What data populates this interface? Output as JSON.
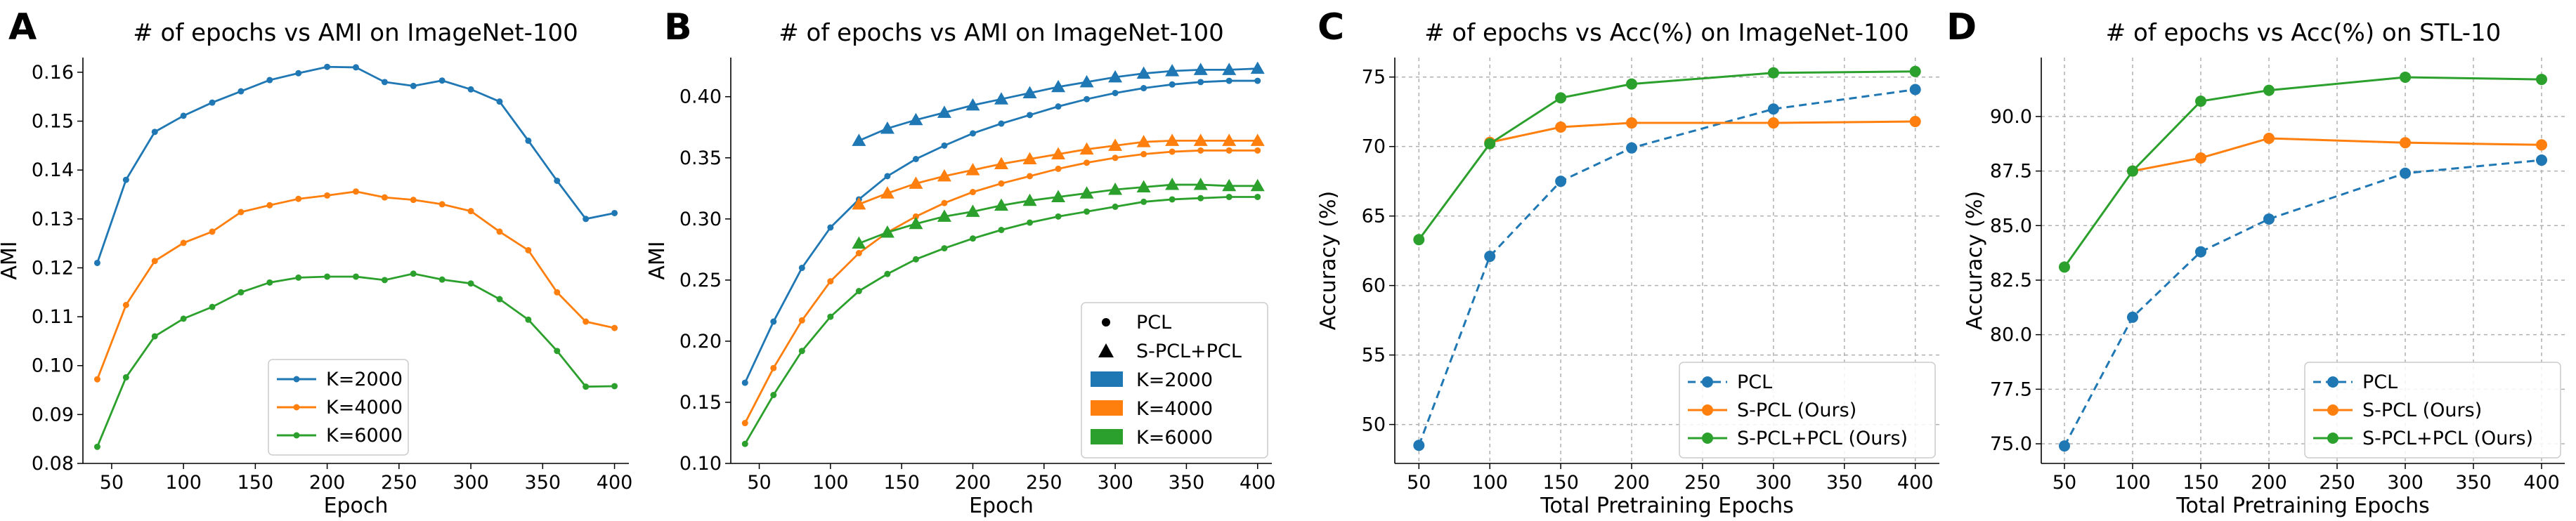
{
  "chart_data": [
    {
      "letter": "A",
      "type": "line",
      "title": "# of epochs vs AMI on ImageNet-100",
      "xlabel": "Epoch",
      "ylabel": "AMI",
      "xlim": [
        30,
        410
      ],
      "ylim": [
        0.08,
        0.163
      ],
      "xticks": [
        {
          "v": 50,
          "label": "50"
        },
        {
          "v": 100,
          "label": "100"
        },
        {
          "v": 150,
          "label": "150"
        },
        {
          "v": 200,
          "label": "200"
        },
        {
          "v": 250,
          "label": "250"
        },
        {
          "v": 300,
          "label": "300"
        },
        {
          "v": 350,
          "label": "350"
        },
        {
          "v": 400,
          "label": "400"
        }
      ],
      "yticks": [
        {
          "v": 0.08,
          "label": "0.08"
        },
        {
          "v": 0.09,
          "label": "0.09"
        },
        {
          "v": 0.1,
          "label": "0.10"
        },
        {
          "v": 0.11,
          "label": "0.11"
        },
        {
          "v": 0.12,
          "label": "0.12"
        },
        {
          "v": 0.13,
          "label": "0.13"
        },
        {
          "v": 0.14,
          "label": "0.14"
        },
        {
          "v": 0.15,
          "label": "0.15"
        },
        {
          "v": 0.16,
          "label": "0.16"
        }
      ],
      "grid": false,
      "legend_position": "lower-center",
      "series": [
        {
          "name": "K=2000",
          "color": "#1f77b4",
          "marker": "dot",
          "dash": false,
          "x": [
            40,
            60,
            80,
            100,
            120,
            140,
            160,
            180,
            200,
            220,
            240,
            260,
            280,
            300,
            320,
            340,
            360,
            380,
            400
          ],
          "y": [
            0.121,
            0.138,
            0.1478,
            0.1511,
            0.1538,
            0.1561,
            0.1584,
            0.1598,
            0.1611,
            0.161,
            0.158,
            0.1572,
            0.1583,
            0.1565,
            0.154,
            0.146,
            0.1378,
            0.13,
            0.1312
          ]
        },
        {
          "name": "K=4000",
          "color": "#ff7f0e",
          "marker": "dot",
          "dash": false,
          "x": [
            40,
            60,
            80,
            100,
            120,
            140,
            160,
            180,
            200,
            220,
            240,
            260,
            280,
            300,
            320,
            340,
            360,
            380,
            400
          ],
          "y": [
            0.0972,
            0.1124,
            0.1214,
            0.1251,
            0.1274,
            0.1314,
            0.1328,
            0.1341,
            0.1348,
            0.1356,
            0.1344,
            0.1339,
            0.133,
            0.1316,
            0.1274,
            0.1236,
            0.115,
            0.109,
            0.1077
          ]
        },
        {
          "name": "K=6000",
          "color": "#2ca02c",
          "marker": "dot",
          "dash": false,
          "x": [
            40,
            60,
            80,
            100,
            120,
            140,
            160,
            180,
            200,
            220,
            240,
            260,
            280,
            300,
            320,
            340,
            360,
            380,
            400
          ],
          "y": [
            0.0834,
            0.0976,
            0.106,
            0.1096,
            0.112,
            0.115,
            0.117,
            0.118,
            0.1182,
            0.1182,
            0.1175,
            0.1188,
            0.1176,
            0.1168,
            0.1136,
            0.1094,
            0.103,
            0.0957,
            0.0958
          ]
        }
      ]
    },
    {
      "letter": "B",
      "type": "line",
      "title": "# of epochs vs AMI on ImageNet-100",
      "xlabel": "Epoch",
      "ylabel": "AMI",
      "xlim": [
        30,
        410
      ],
      "ylim": [
        0.1,
        0.432
      ],
      "xticks": [
        {
          "v": 50,
          "label": "50"
        },
        {
          "v": 100,
          "label": "100"
        },
        {
          "v": 150,
          "label": "150"
        },
        {
          "v": 200,
          "label": "200"
        },
        {
          "v": 250,
          "label": "250"
        },
        {
          "v": 300,
          "label": "300"
        },
        {
          "v": 350,
          "label": "350"
        },
        {
          "v": 400,
          "label": "400"
        }
      ],
      "yticks": [
        {
          "v": 0.1,
          "label": "0.10"
        },
        {
          "v": 0.15,
          "label": "0.15"
        },
        {
          "v": 0.2,
          "label": "0.20"
        },
        {
          "v": 0.25,
          "label": "0.25"
        },
        {
          "v": 0.3,
          "label": "0.30"
        },
        {
          "v": 0.35,
          "label": "0.35"
        },
        {
          "v": 0.4,
          "label": "0.40"
        }
      ],
      "grid": false,
      "legend_position": "lower-right",
      "legend": [
        {
          "label": "PCL",
          "kind": "dot"
        },
        {
          "label": "S-PCL+PCL",
          "kind": "triangle"
        },
        {
          "label": "K=2000",
          "kind": "patch",
          "color": "#1f77b4"
        },
        {
          "label": "K=4000",
          "kind": "patch",
          "color": "#ff7f0e"
        },
        {
          "label": "K=6000",
          "kind": "patch",
          "color": "#2ca02c"
        }
      ],
      "series": [
        {
          "name": "PCL K=2000",
          "color": "#1f77b4",
          "marker": "dot",
          "dash": false,
          "x": [
            40,
            60,
            80,
            100,
            120,
            140,
            160,
            180,
            200,
            220,
            240,
            260,
            280,
            300,
            320,
            340,
            360,
            380,
            400
          ],
          "y": [
            0.166,
            0.216,
            0.26,
            0.293,
            0.316,
            0.335,
            0.349,
            0.36,
            0.37,
            0.378,
            0.385,
            0.392,
            0.398,
            0.403,
            0.407,
            0.41,
            0.412,
            0.413,
            0.413
          ]
        },
        {
          "name": "PCL K=4000",
          "color": "#ff7f0e",
          "marker": "dot",
          "dash": false,
          "x": [
            40,
            60,
            80,
            100,
            120,
            140,
            160,
            180,
            200,
            220,
            240,
            260,
            280,
            300,
            320,
            340,
            360,
            380,
            400
          ],
          "y": [
            0.133,
            0.178,
            0.217,
            0.249,
            0.272,
            0.289,
            0.302,
            0.313,
            0.322,
            0.329,
            0.335,
            0.341,
            0.346,
            0.35,
            0.353,
            0.355,
            0.356,
            0.356,
            0.356
          ]
        },
        {
          "name": "PCL K=6000",
          "color": "#2ca02c",
          "marker": "dot",
          "dash": false,
          "x": [
            40,
            60,
            80,
            100,
            120,
            140,
            160,
            180,
            200,
            220,
            240,
            260,
            280,
            300,
            320,
            340,
            360,
            380,
            400
          ],
          "y": [
            0.116,
            0.156,
            0.192,
            0.22,
            0.241,
            0.255,
            0.267,
            0.276,
            0.284,
            0.291,
            0.297,
            0.302,
            0.306,
            0.31,
            0.314,
            0.316,
            0.317,
            0.318,
            0.318
          ]
        },
        {
          "name": "S-PCL+PCL K=2000",
          "color": "#1f77b4",
          "marker": "triangle",
          "dash": false,
          "x": [
            120,
            140,
            160,
            180,
            200,
            220,
            240,
            260,
            280,
            300,
            320,
            340,
            360,
            380,
            400
          ],
          "y": [
            0.364,
            0.374,
            0.381,
            0.387,
            0.393,
            0.398,
            0.403,
            0.408,
            0.412,
            0.416,
            0.419,
            0.421,
            0.422,
            0.422,
            0.423
          ]
        },
        {
          "name": "S-PCL+PCL K=4000",
          "color": "#ff7f0e",
          "marker": "triangle",
          "dash": false,
          "x": [
            120,
            140,
            160,
            180,
            200,
            220,
            240,
            260,
            280,
            300,
            320,
            340,
            360,
            380,
            400
          ],
          "y": [
            0.312,
            0.321,
            0.329,
            0.335,
            0.34,
            0.345,
            0.349,
            0.353,
            0.357,
            0.36,
            0.363,
            0.364,
            0.364,
            0.364,
            0.364
          ]
        },
        {
          "name": "S-PCL+PCL K=6000",
          "color": "#2ca02c",
          "marker": "triangle",
          "dash": false,
          "x": [
            120,
            140,
            160,
            180,
            200,
            220,
            240,
            260,
            280,
            300,
            320,
            340,
            360,
            380,
            400
          ],
          "y": [
            0.28,
            0.289,
            0.296,
            0.302,
            0.306,
            0.311,
            0.315,
            0.318,
            0.321,
            0.324,
            0.326,
            0.328,
            0.328,
            0.327,
            0.327
          ]
        }
      ]
    },
    {
      "letter": "C",
      "type": "line",
      "title": "# of epochs vs Acc(%) on ImageNet-100",
      "xlabel": "Total Pretraining Epochs",
      "ylabel": "Accuracy (%)",
      "xlim": [
        33,
        417
      ],
      "ylim": [
        47.2,
        76.4
      ],
      "xticks": [
        {
          "v": 50,
          "label": "50"
        },
        {
          "v": 100,
          "label": "100"
        },
        {
          "v": 150,
          "label": "150"
        },
        {
          "v": 200,
          "label": "200"
        },
        {
          "v": 250,
          "label": "250"
        },
        {
          "v": 300,
          "label": "300"
        },
        {
          "v": 350,
          "label": "350"
        },
        {
          "v": 400,
          "label": "400"
        }
      ],
      "yticks": [
        {
          "v": 50,
          "label": "50"
        },
        {
          "v": 55,
          "label": "55"
        },
        {
          "v": 60,
          "label": "60"
        },
        {
          "v": 65,
          "label": "65"
        },
        {
          "v": 70,
          "label": "70"
        },
        {
          "v": 75,
          "label": "75"
        }
      ],
      "grid": true,
      "legend_position": "lower-right",
      "series": [
        {
          "name": "PCL",
          "color": "#1f77b4",
          "marker": "bigdot",
          "dash": true,
          "x": [
            50,
            100,
            150,
            200,
            300,
            400
          ],
          "y": [
            48.5,
            62.1,
            67.5,
            69.9,
            72.7,
            74.1
          ]
        },
        {
          "name": "S-PCL (Ours)",
          "color": "#ff7f0e",
          "marker": "bigdot",
          "dash": false,
          "x": [
            100,
            150,
            200,
            300,
            400
          ],
          "y": [
            70.3,
            71.4,
            71.7,
            71.7,
            71.8
          ]
        },
        {
          "name": "S-PCL+PCL (Ours)",
          "color": "#2ca02c",
          "marker": "bigdot",
          "dash": false,
          "x": [
            50,
            100,
            150,
            200,
            300,
            400
          ],
          "y": [
            63.3,
            70.2,
            73.5,
            74.5,
            75.3,
            75.4
          ]
        }
      ]
    },
    {
      "letter": "D",
      "type": "line",
      "title": "# of epochs vs Acc(%) on STL-10",
      "xlabel": "Total Pretraining Epochs",
      "ylabel": "Accuracy (%)",
      "xlim": [
        33,
        417
      ],
      "ylim": [
        74.1,
        92.7
      ],
      "xticks": [
        {
          "v": 50,
          "label": "50"
        },
        {
          "v": 100,
          "label": "100"
        },
        {
          "v": 150,
          "label": "150"
        },
        {
          "v": 200,
          "label": "200"
        },
        {
          "v": 250,
          "label": "250"
        },
        {
          "v": 300,
          "label": "300"
        },
        {
          "v": 350,
          "label": "350"
        },
        {
          "v": 400,
          "label": "400"
        }
      ],
      "yticks": [
        {
          "v": 75.0,
          "label": "75.0"
        },
        {
          "v": 77.5,
          "label": "77.5"
        },
        {
          "v": 80.0,
          "label": "80.0"
        },
        {
          "v": 82.5,
          "label": "82.5"
        },
        {
          "v": 85.0,
          "label": "85.0"
        },
        {
          "v": 87.5,
          "label": "87.5"
        },
        {
          "v": 90.0,
          "label": "90.0"
        }
      ],
      "grid": true,
      "legend_position": "lower-right",
      "series": [
        {
          "name": "PCL",
          "color": "#1f77b4",
          "marker": "bigdot",
          "dash": true,
          "x": [
            50,
            100,
            150,
            200,
            300,
            400
          ],
          "y": [
            74.9,
            80.8,
            83.8,
            85.3,
            87.4,
            88.0
          ]
        },
        {
          "name": "S-PCL (Ours)",
          "color": "#ff7f0e",
          "marker": "bigdot",
          "dash": false,
          "x": [
            100,
            150,
            200,
            300,
            400
          ],
          "y": [
            87.5,
            88.1,
            89.0,
            88.8,
            88.7
          ]
        },
        {
          "name": "S-PCL+PCL (Ours)",
          "color": "#2ca02c",
          "marker": "bigdot",
          "dash": false,
          "x": [
            50,
            100,
            150,
            200,
            300,
            400
          ],
          "y": [
            83.1,
            87.5,
            90.7,
            91.2,
            91.8,
            91.7
          ]
        }
      ]
    }
  ]
}
